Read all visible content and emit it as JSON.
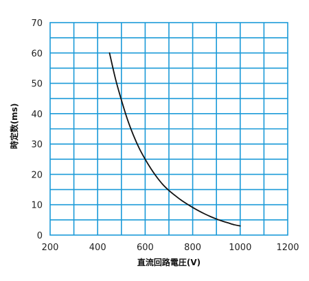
{
  "chart_data": {
    "type": "line",
    "title": "",
    "xlabel": "直流回路電圧(V)",
    "ylabel": "時定数(ms)",
    "xlim": [
      200,
      1200
    ],
    "ylim": [
      0,
      70
    ],
    "x_major_ticks": [
      200,
      400,
      600,
      800,
      1000,
      1200
    ],
    "x_tick_labels": [
      "200",
      "400",
      "600",
      "800",
      "1000",
      "1200"
    ],
    "x_grid_step": 100,
    "y_major_ticks": [
      0,
      10,
      20,
      30,
      40,
      50,
      60,
      70
    ],
    "y_tick_labels": [
      "0",
      "10",
      "20",
      "30",
      "40",
      "50",
      "60",
      "70"
    ],
    "y_grid_step": 5,
    "grid": true,
    "legend": "none",
    "colors": {
      "grid": "#1a9ad8",
      "curve": "#111111"
    },
    "series": [
      {
        "x": [
          450,
          475,
          500,
          525,
          550,
          575,
          600,
          625,
          650,
          675,
          700,
          725,
          750,
          775,
          800,
          825,
          850,
          875,
          900,
          925,
          950,
          975,
          1000
        ],
        "y": [
          60,
          51.5,
          44.5,
          38.2,
          33,
          28.6,
          25,
          21.8,
          19,
          16.6,
          14.7,
          13.1,
          11.6,
          10.3,
          9.1,
          8,
          7,
          6.1,
          5.3,
          4.6,
          4,
          3.4,
          3
        ]
      }
    ]
  }
}
